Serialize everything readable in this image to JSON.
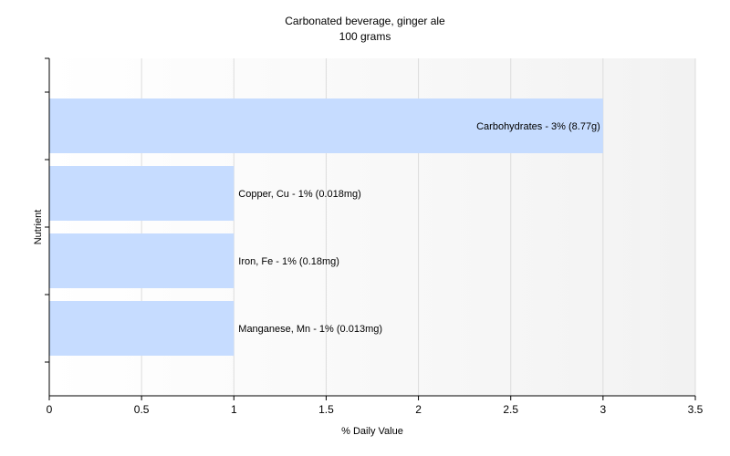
{
  "chart_data": {
    "type": "bar",
    "orientation": "horizontal",
    "title": "Carbonated beverage, ginger ale",
    "subtitle": "100 grams",
    "xlabel": "% Daily Value",
    "ylabel": "Nutrient",
    "xlim": [
      0,
      3.5
    ],
    "xticks": [
      "0",
      "0.5",
      "1",
      "1.5",
      "2",
      "2.5",
      "3",
      "3.5"
    ],
    "grid": true,
    "bar_color": "#c6dcff",
    "categories": [
      "Carbohydrates",
      "Copper, Cu",
      "Iron, Fe",
      "Manganese, Mn"
    ],
    "values": [
      3,
      1,
      1,
      1
    ],
    "labels": [
      "Carbohydrates - 3% (8.77g)",
      "Copper, Cu - 1% (0.018mg)",
      "Iron, Fe - 1% (0.18mg)",
      "Manganese, Mn - 1% (0.013mg)"
    ]
  }
}
